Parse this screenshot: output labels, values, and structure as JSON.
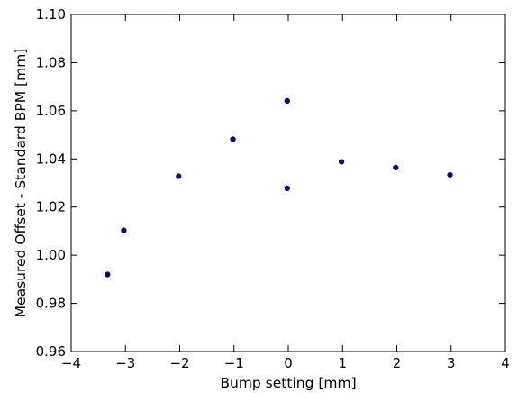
{
  "chart_data": {
    "type": "scatter",
    "title": "",
    "xlabel": "Bump setting [mm]",
    "ylabel": "Measured Offset - Standard BPM [mm]",
    "xlim": [
      -4,
      4
    ],
    "ylim": [
      0.96,
      1.1
    ],
    "xticks": [
      -4,
      -3,
      -2,
      -1,
      0,
      1,
      2,
      3,
      4
    ],
    "xtick_labels": [
      "−4",
      "−3",
      "−2",
      "−1",
      "0",
      "1",
      "2",
      "3",
      "4"
    ],
    "yticks": [
      0.96,
      0.98,
      1.0,
      1.02,
      1.04,
      1.06,
      1.08,
      1.1
    ],
    "ytick_labels": [
      "0.96",
      "0.98",
      "1.00",
      "1.02",
      "1.04",
      "1.06",
      "1.08",
      "1.10"
    ],
    "grid": false,
    "legend": "none",
    "marker_color": "#0b0b8a",
    "series": [
      {
        "points": [
          {
            "x": -3.33,
            "y": 0.992
          },
          {
            "x": -3.03,
            "y": 1.0103
          },
          {
            "x": -2.02,
            "y": 1.0328
          },
          {
            "x": -1.02,
            "y": 1.0482
          },
          {
            "x": -0.02,
            "y": 1.0641
          },
          {
            "x": -0.02,
            "y": 1.0278
          },
          {
            "x": 0.98,
            "y": 1.0388
          },
          {
            "x": 1.98,
            "y": 1.0364
          },
          {
            "x": 2.98,
            "y": 1.0334
          }
        ]
      }
    ]
  }
}
